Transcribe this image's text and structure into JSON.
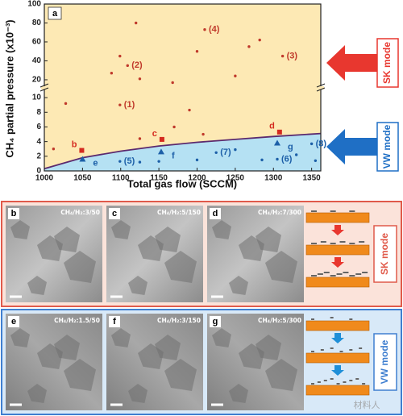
{
  "chart_data": {
    "type": "scatter",
    "panel_label": "a",
    "x_label": "Total gas flow (SCCM)",
    "y_label": "CH₄ partial pressure (x10⁻³)",
    "xlim": [
      1000,
      1362
    ],
    "xticks": [
      1000,
      1050,
      1100,
      1150,
      1200,
      1250,
      1300,
      1350
    ],
    "ylim": [
      0,
      11
    ],
    "yticks": [
      0,
      2,
      4,
      6,
      8,
      10
    ],
    "ylim_upper": [
      14,
      100
    ],
    "yticks_upper": [
      20,
      40,
      60,
      80,
      100
    ],
    "axis_break": true,
    "series": [
      {
        "marker": "dot",
        "color": "#c0392b",
        "x": [
          1120,
          1099,
          1109,
          1088,
          1125,
          1168,
          1200,
          1210,
          1282,
          1268,
          1250,
          1312,
          1028,
          1099,
          1190,
          1012,
          1125,
          1208,
          1170
        ],
        "values": [
          80,
          45,
          35,
          27,
          21,
          17,
          50,
          73,
          62,
          55,
          24,
          45,
          9.2,
          9.0,
          8.3,
          3.0,
          4.4,
          5.0,
          6.0
        ],
        "labels": [
          null,
          null,
          "(2)",
          null,
          null,
          null,
          null,
          "(4)",
          null,
          null,
          null,
          "(3)",
          null,
          "(1)",
          null,
          null,
          null,
          null,
          null
        ]
      },
      {
        "marker": "square",
        "color": "#d42a1f",
        "x": [
          1049,
          1154,
          1308
        ],
        "values": [
          2.8,
          4.3,
          5.3
        ],
        "labels": [
          "b",
          "c",
          "d"
        ]
      },
      {
        "marker": "triangle",
        "color": "#1c5fa8",
        "x": [
          1050,
          1153,
          1305
        ],
        "values": [
          1.6,
          2.6,
          3.8
        ],
        "labels": [
          "e",
          "f",
          "g"
        ]
      },
      {
        "marker": "dot",
        "color": "#1c5fa8",
        "x": [
          1099,
          1305,
          1225,
          1350,
          1125,
          1150,
          1200,
          1250,
          1285,
          1330,
          1355
        ],
        "values": [
          1.3,
          1.6,
          2.5,
          3.7,
          1.2,
          1.3,
          1.5,
          2.9,
          1.5,
          2.2,
          1.4
        ],
        "labels": [
          "(5)",
          "(6)",
          "(7)",
          "(8)",
          null,
          null,
          null,
          null,
          null,
          null,
          null
        ]
      }
    ],
    "boundary": {
      "color": "#5b2a6e",
      "fill": "#b5e1f3",
      "x": [
        1000,
        1050,
        1100,
        1150,
        1200,
        1250,
        1300,
        1362
      ],
      "values": [
        0.3,
        1.8,
        2.7,
        3.4,
        3.9,
        4.3,
        4.7,
        5.1
      ]
    },
    "modes": [
      {
        "text": "SK mode",
        "color": "#e8372f"
      },
      {
        "text": "VW mode",
        "color": "#1f6fc5"
      }
    ]
  },
  "panels": [
    {
      "mode": "SK mode",
      "border": "#e05a4a",
      "background": "#fbe3da",
      "images": [
        {
          "label": "b",
          "ratio": "CH₄/H₂:3/50"
        },
        {
          "label": "c",
          "ratio": "CH₄/H₂:5/150"
        },
        {
          "label": "d",
          "ratio": "CH₄/H₂:7/300"
        }
      ]
    },
    {
      "mode": "VW mode",
      "border": "#3f7fd0",
      "background": "#d8e9f8",
      "images": [
        {
          "label": "e",
          "ratio": "CH₄/H₂:1.5/50"
        },
        {
          "label": "f",
          "ratio": "CH₄/H₂:3/150"
        },
        {
          "label": "g",
          "ratio": "CH₄/H₂:5/300"
        }
      ]
    }
  ],
  "watermark": "材料人"
}
